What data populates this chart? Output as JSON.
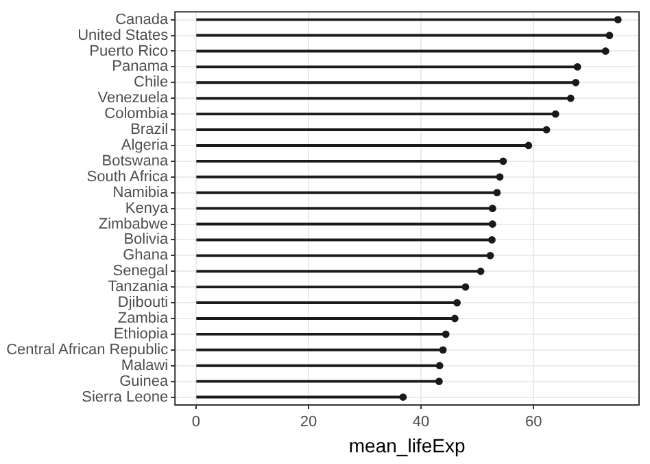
{
  "chart_data": {
    "type": "lollipop",
    "orientation": "horizontal",
    "xlabel": "mean_lifeExp",
    "categories": [
      "Canada",
      "United States",
      "Puerto Rico",
      "Panama",
      "Chile",
      "Venezuela",
      "Colombia",
      "Brazil",
      "Algeria",
      "Botswana",
      "South Africa",
      "Namibia",
      "Kenya",
      "Zimbabwe",
      "Bolivia",
      "Ghana",
      "Senegal",
      "Tanzania",
      "Djibouti",
      "Zambia",
      "Ethiopia",
      "Central African Republic",
      "Malawi",
      "Guinea",
      "Sierra Leone"
    ],
    "values": [
      75.0,
      73.5,
      72.8,
      67.8,
      67.5,
      66.6,
      63.9,
      62.3,
      59.1,
      54.6,
      54.0,
      53.5,
      52.7,
      52.7,
      52.6,
      52.3,
      50.6,
      47.9,
      46.4,
      46.0,
      44.4,
      43.9,
      43.3,
      43.2,
      36.8
    ],
    "color": "#1a1a1a",
    "marker": "circle",
    "xlim": [
      -3.75,
      78.75
    ],
    "xticks": [
      0,
      20,
      40,
      60
    ],
    "grid": true
  }
}
